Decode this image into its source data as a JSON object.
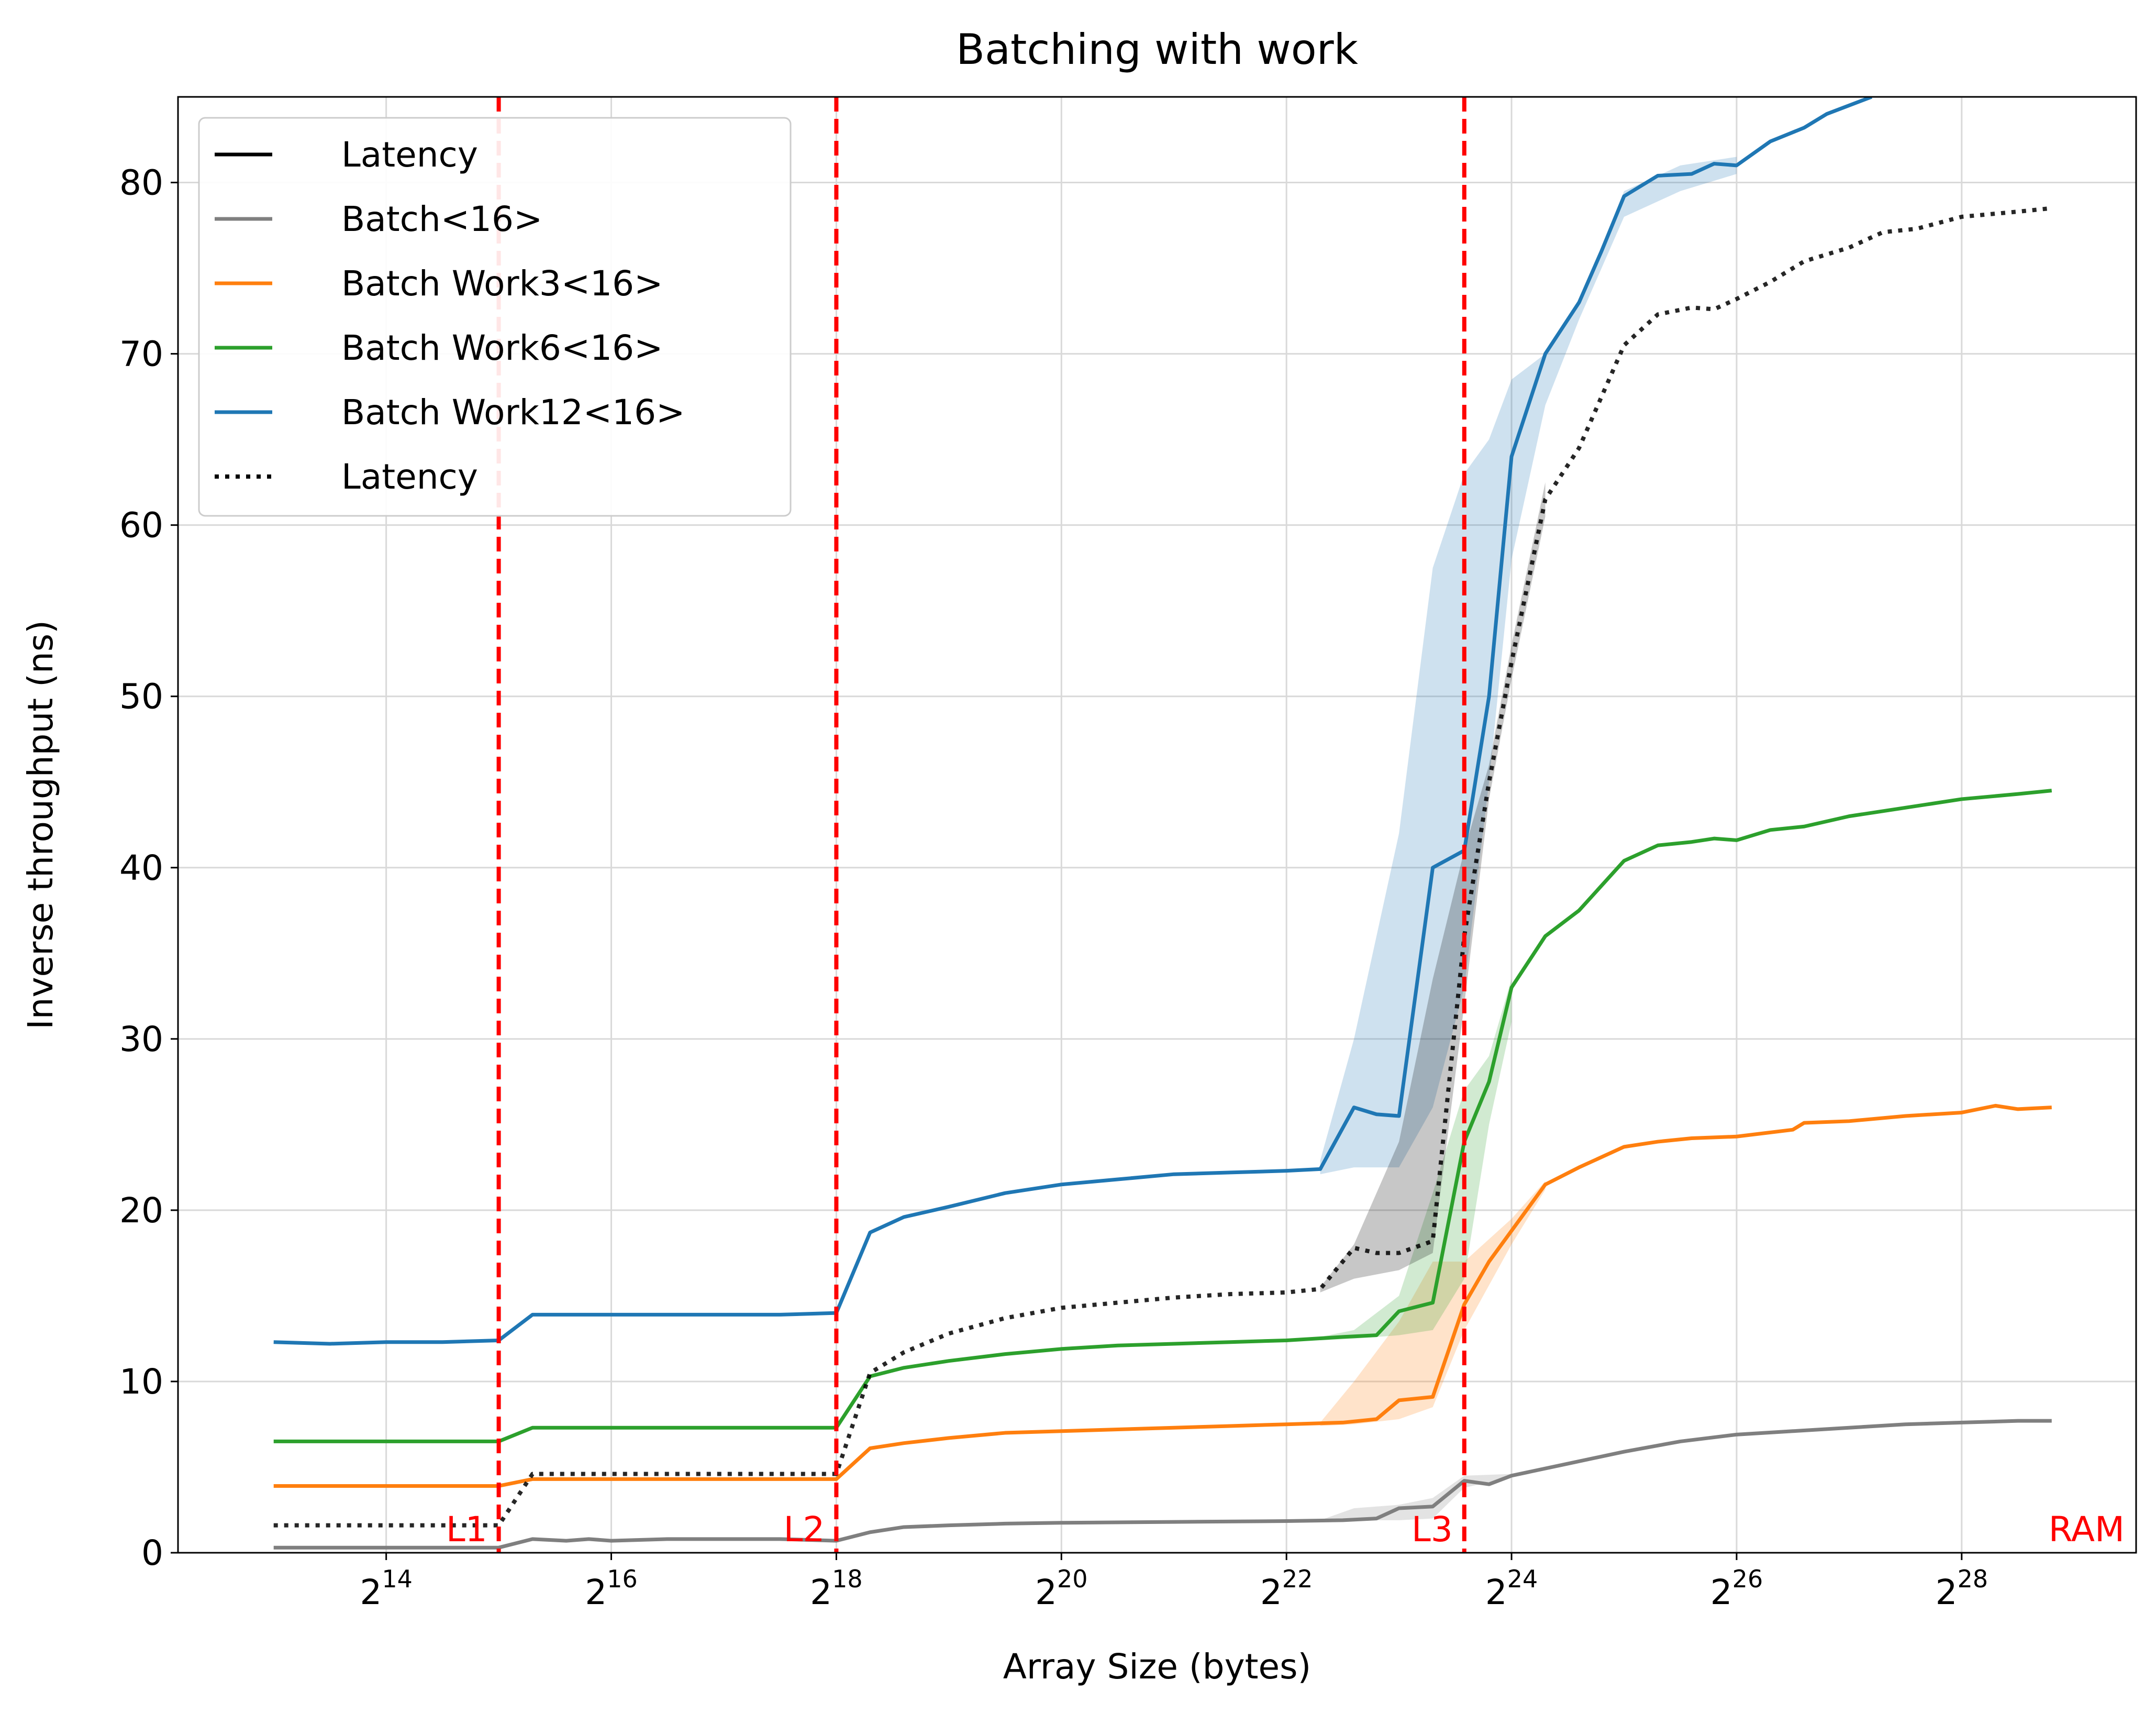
{
  "chart_data": {
    "type": "line",
    "title": "Batching with work",
    "xlabel": "Array Size (bytes)",
    "ylabel": "Inverse throughput (ns)",
    "x_scale": "log2",
    "xlim_log2": [
      12.15,
      29.55
    ],
    "ylim": [
      0,
      85
    ],
    "xticks": [
      {
        "exp": 14,
        "base": "2",
        "sup": "14"
      },
      {
        "exp": 16,
        "base": "2",
        "sup": "16"
      },
      {
        "exp": 18,
        "base": "2",
        "sup": "18"
      },
      {
        "exp": 20,
        "base": "2",
        "sup": "20"
      },
      {
        "exp": 22,
        "base": "2",
        "sup": "22"
      },
      {
        "exp": 24,
        "base": "2",
        "sup": "24"
      },
      {
        "exp": 26,
        "base": "2",
        "sup": "26"
      },
      {
        "exp": 28,
        "base": "2",
        "sup": "28"
      }
    ],
    "yticks": [
      0,
      10,
      20,
      30,
      40,
      50,
      60,
      70,
      80
    ],
    "grid": true,
    "legend_position": "upper-left",
    "cache_lines": [
      {
        "label": "L1",
        "x_log2": 15.0
      },
      {
        "label": "L2",
        "x_log2": 18.0
      },
      {
        "label": "L3",
        "x_log2": 23.58
      }
    ],
    "ram_label": "RAM",
    "colors": {
      "latency": "#000000",
      "batch16": "#7f7f7f",
      "work3": "#ff7f0e",
      "work6": "#2ca02c",
      "work12": "#1f77b4",
      "cache_line": "#ff0000"
    },
    "legend": [
      {
        "label": "Latency",
        "color": "#000000",
        "style": "solid"
      },
      {
        "label": "Batch<16>",
        "color": "#7f7f7f",
        "style": "solid"
      },
      {
        "label": "Batch Work3<16>",
        "color": "#ff7f0e",
        "style": "solid"
      },
      {
        "label": "Batch Work6<16>",
        "color": "#2ca02c",
        "style": "solid"
      },
      {
        "label": "Batch Work12<16>",
        "color": "#1f77b4",
        "style": "solid"
      },
      {
        "label": "Latency",
        "color": "#000000",
        "style": "dotted"
      }
    ],
    "series": [
      {
        "name": "Batch<16>",
        "color": "#7f7f7f",
        "style": "solid",
        "points": [
          [
            13,
            0.3
          ],
          [
            13.5,
            0.3
          ],
          [
            14,
            0.3
          ],
          [
            14.5,
            0.3
          ],
          [
            15,
            0.3
          ],
          [
            15.3,
            0.8
          ],
          [
            15.6,
            0.7
          ],
          [
            15.8,
            0.8
          ],
          [
            16,
            0.7
          ],
          [
            16.5,
            0.8
          ],
          [
            17,
            0.8
          ],
          [
            17.5,
            0.8
          ],
          [
            18,
            0.7
          ],
          [
            18.3,
            1.2
          ],
          [
            18.6,
            1.5
          ],
          [
            19,
            1.6
          ],
          [
            19.5,
            1.7
          ],
          [
            20,
            1.75
          ],
          [
            21,
            1.8
          ],
          [
            22,
            1.85
          ],
          [
            22.5,
            1.9
          ],
          [
            22.8,
            2.0
          ],
          [
            23,
            2.6
          ],
          [
            23.3,
            2.7
          ],
          [
            23.58,
            4.2
          ],
          [
            23.8,
            4.0
          ],
          [
            24,
            4.5
          ],
          [
            24.5,
            5.2
          ],
          [
            25,
            5.9
          ],
          [
            25.5,
            6.5
          ],
          [
            26,
            6.9
          ],
          [
            26.5,
            7.1
          ],
          [
            27,
            7.3
          ],
          [
            27.5,
            7.5
          ],
          [
            28,
            7.6
          ],
          [
            28.5,
            7.7
          ],
          [
            28.8,
            7.7
          ]
        ],
        "band_upper": [
          [
            22.3,
            1.9
          ],
          [
            22.6,
            2.6
          ],
          [
            23.0,
            2.8
          ],
          [
            23.3,
            3.2
          ],
          [
            23.58,
            4.5
          ],
          [
            24,
            4.6
          ]
        ],
        "band_lower": [
          [
            22.3,
            1.8
          ],
          [
            22.6,
            1.9
          ],
          [
            23.0,
            1.9
          ],
          [
            23.3,
            2.0
          ],
          [
            23.58,
            3.8
          ],
          [
            24,
            4.4
          ]
        ]
      },
      {
        "name": "Batch Work3<16>",
        "color": "#ff7f0e",
        "style": "solid",
        "points": [
          [
            13,
            3.9
          ],
          [
            13.5,
            3.9
          ],
          [
            14,
            3.9
          ],
          [
            14.5,
            3.9
          ],
          [
            15,
            3.9
          ],
          [
            15.3,
            4.3
          ],
          [
            16,
            4.3
          ],
          [
            16.5,
            4.3
          ],
          [
            17,
            4.3
          ],
          [
            17.5,
            4.3
          ],
          [
            18,
            4.3
          ],
          [
            18.3,
            6.1
          ],
          [
            18.6,
            6.4
          ],
          [
            19,
            6.7
          ],
          [
            19.5,
            7.0
          ],
          [
            20,
            7.1
          ],
          [
            20.5,
            7.2
          ],
          [
            21,
            7.3
          ],
          [
            21.5,
            7.4
          ],
          [
            22,
            7.5
          ],
          [
            22.5,
            7.6
          ],
          [
            22.8,
            7.8
          ],
          [
            23.0,
            8.9
          ],
          [
            23.3,
            9.1
          ],
          [
            23.58,
            14.5
          ],
          [
            23.8,
            17.0
          ],
          [
            24,
            18.8
          ],
          [
            24.3,
            21.5
          ],
          [
            24.6,
            22.5
          ],
          [
            25,
            23.7
          ],
          [
            25.3,
            24.0
          ],
          [
            25.6,
            24.2
          ],
          [
            26,
            24.3
          ],
          [
            26.5,
            24.7
          ],
          [
            26.6,
            25.1
          ],
          [
            27,
            25.2
          ],
          [
            27.5,
            25.5
          ],
          [
            28,
            25.7
          ],
          [
            28.3,
            26.1
          ],
          [
            28.5,
            25.9
          ],
          [
            28.8,
            26.0
          ]
        ],
        "band_upper": [
          [
            22.3,
            7.6
          ],
          [
            22.6,
            10.0
          ],
          [
            23.0,
            13.5
          ],
          [
            23.3,
            17.0
          ],
          [
            23.58,
            17.0
          ],
          [
            24,
            19.5
          ],
          [
            24.3,
            21.7
          ]
        ],
        "band_lower": [
          [
            22.3,
            7.4
          ],
          [
            22.6,
            7.5
          ],
          [
            23.0,
            7.8
          ],
          [
            23.3,
            8.5
          ],
          [
            23.58,
            13.0
          ],
          [
            24,
            18.0
          ],
          [
            24.3,
            21.2
          ]
        ]
      },
      {
        "name": "Batch Work6<16>",
        "color": "#2ca02c",
        "style": "solid",
        "points": [
          [
            13,
            6.5
          ],
          [
            13.5,
            6.5
          ],
          [
            14,
            6.5
          ],
          [
            14.5,
            6.5
          ],
          [
            15,
            6.5
          ],
          [
            15.3,
            7.3
          ],
          [
            16,
            7.3
          ],
          [
            16.5,
            7.3
          ],
          [
            17,
            7.3
          ],
          [
            17.5,
            7.3
          ],
          [
            18,
            7.3
          ],
          [
            18.3,
            10.3
          ],
          [
            18.6,
            10.8
          ],
          [
            19,
            11.2
          ],
          [
            19.5,
            11.6
          ],
          [
            20,
            11.9
          ],
          [
            20.5,
            12.1
          ],
          [
            21,
            12.2
          ],
          [
            21.5,
            12.3
          ],
          [
            22,
            12.4
          ],
          [
            22.5,
            12.6
          ],
          [
            22.8,
            12.7
          ],
          [
            23,
            14.1
          ],
          [
            23.3,
            14.6
          ],
          [
            23.58,
            24.0
          ],
          [
            23.8,
            27.5
          ],
          [
            24,
            33.0
          ],
          [
            24.3,
            36.0
          ],
          [
            24.6,
            37.5
          ],
          [
            25,
            40.4
          ],
          [
            25.3,
            41.3
          ],
          [
            25.6,
            41.5
          ],
          [
            25.8,
            41.7
          ],
          [
            26,
            41.6
          ],
          [
            26.3,
            42.2
          ],
          [
            26.6,
            42.4
          ],
          [
            27,
            43.0
          ],
          [
            27.5,
            43.5
          ],
          [
            28,
            44.0
          ],
          [
            28.5,
            44.3
          ],
          [
            28.8,
            44.5
          ]
        ],
        "band_upper": [
          [
            22.3,
            12.6
          ],
          [
            22.6,
            13.0
          ],
          [
            23.0,
            15.0
          ],
          [
            23.3,
            21.0
          ],
          [
            23.58,
            27.0
          ],
          [
            23.8,
            29.0
          ],
          [
            24,
            33.5
          ]
        ],
        "band_lower": [
          [
            22.3,
            12.4
          ],
          [
            22.6,
            12.5
          ],
          [
            23.0,
            12.7
          ],
          [
            23.3,
            13.0
          ],
          [
            23.58,
            16.0
          ],
          [
            23.8,
            25.0
          ],
          [
            24,
            31.0
          ]
        ]
      },
      {
        "name": "Batch Work12<16>",
        "color": "#1f77b4",
        "style": "solid",
        "points": [
          [
            13,
            12.3
          ],
          [
            13.5,
            12.2
          ],
          [
            14,
            12.3
          ],
          [
            14.5,
            12.3
          ],
          [
            15,
            12.4
          ],
          [
            15.3,
            13.9
          ],
          [
            16,
            13.9
          ],
          [
            16.5,
            13.9
          ],
          [
            17,
            13.9
          ],
          [
            17.5,
            13.9
          ],
          [
            18,
            14.0
          ],
          [
            18.3,
            18.7
          ],
          [
            18.6,
            19.6
          ],
          [
            19,
            20.2
          ],
          [
            19.5,
            21.0
          ],
          [
            20,
            21.5
          ],
          [
            20.5,
            21.8
          ],
          [
            21,
            22.1
          ],
          [
            21.5,
            22.2
          ],
          [
            22,
            22.3
          ],
          [
            22.3,
            22.4
          ],
          [
            22.6,
            26.0
          ],
          [
            22.8,
            25.6
          ],
          [
            23,
            25.5
          ],
          [
            23.3,
            40.0
          ],
          [
            23.58,
            41.0
          ],
          [
            23.8,
            50.0
          ],
          [
            24,
            64.0
          ],
          [
            24.3,
            70.0
          ],
          [
            24.6,
            73.0
          ],
          [
            24.8,
            76.0
          ],
          [
            25,
            79.2
          ],
          [
            25.3,
            80.4
          ],
          [
            25.6,
            80.5
          ],
          [
            25.8,
            81.1
          ],
          [
            26,
            81.0
          ],
          [
            26.3,
            82.4
          ],
          [
            26.6,
            83.2
          ],
          [
            26.8,
            84.0
          ],
          [
            27.2,
            85.0
          ]
        ],
        "band_upper": [
          [
            22.3,
            22.9
          ],
          [
            22.6,
            30.0
          ],
          [
            23.0,
            42.0
          ],
          [
            23.3,
            57.5
          ],
          [
            23.58,
            63.0
          ],
          [
            23.8,
            65.0
          ],
          [
            24,
            68.5
          ],
          [
            24.3,
            70.0
          ],
          [
            24.6,
            73.0
          ],
          [
            25,
            79.5
          ],
          [
            25.5,
            81.0
          ],
          [
            26,
            81.5
          ]
        ],
        "band_lower": [
          [
            22.3,
            22.1
          ],
          [
            22.6,
            22.5
          ],
          [
            23.0,
            22.5
          ],
          [
            23.3,
            26.0
          ],
          [
            23.58,
            33.0
          ],
          [
            23.8,
            45.0
          ],
          [
            24,
            58.0
          ],
          [
            24.3,
            67.0
          ],
          [
            24.6,
            72.0
          ],
          [
            25,
            78.0
          ],
          [
            25.5,
            79.5
          ],
          [
            26,
            80.5
          ]
        ]
      },
      {
        "name": "Latency",
        "color": "#000000",
        "style": "dotted",
        "points": [
          [
            13,
            1.6
          ],
          [
            13.5,
            1.6
          ],
          [
            14,
            1.6
          ],
          [
            14.5,
            1.6
          ],
          [
            15,
            1.6
          ],
          [
            15.3,
            4.6
          ],
          [
            16,
            4.6
          ],
          [
            16.5,
            4.6
          ],
          [
            17,
            4.6
          ],
          [
            17.5,
            4.6
          ],
          [
            18,
            4.6
          ],
          [
            18.3,
            10.5
          ],
          [
            18.6,
            11.7
          ],
          [
            19,
            12.8
          ],
          [
            19.5,
            13.7
          ],
          [
            20,
            14.3
          ],
          [
            20.5,
            14.6
          ],
          [
            21,
            14.9
          ],
          [
            21.5,
            15.1
          ],
          [
            22,
            15.2
          ],
          [
            22.3,
            15.4
          ],
          [
            22.6,
            17.8
          ],
          [
            22.8,
            17.5
          ],
          [
            23,
            17.5
          ],
          [
            23.3,
            18.2
          ],
          [
            23.58,
            36.0
          ],
          [
            23.8,
            45.0
          ],
          [
            24,
            52.0
          ],
          [
            24.3,
            61.5
          ],
          [
            24.6,
            64.5
          ],
          [
            25,
            70.5
          ],
          [
            25.3,
            72.3
          ],
          [
            25.6,
            72.7
          ],
          [
            25.8,
            72.6
          ],
          [
            26,
            73.2
          ],
          [
            26.3,
            74.2
          ],
          [
            26.6,
            75.4
          ],
          [
            27,
            76.2
          ],
          [
            27.3,
            77.1
          ],
          [
            27.6,
            77.3
          ],
          [
            28,
            78.0
          ],
          [
            28.5,
            78.3
          ],
          [
            28.8,
            78.5
          ]
        ],
        "band_upper": [
          [
            22.3,
            15.5
          ],
          [
            22.6,
            18.0
          ],
          [
            23.0,
            24.0
          ],
          [
            23.3,
            33.5
          ],
          [
            23.58,
            41.0
          ],
          [
            23.8,
            46.0
          ],
          [
            24,
            53.0
          ],
          [
            24.3,
            62.5
          ]
        ],
        "band_lower": [
          [
            22.3,
            15.2
          ],
          [
            22.6,
            16.0
          ],
          [
            23.0,
            16.5
          ],
          [
            23.3,
            17.5
          ],
          [
            23.58,
            32.0
          ],
          [
            23.8,
            44.0
          ],
          [
            24,
            51.0
          ],
          [
            24.3,
            60.5
          ]
        ]
      }
    ]
  }
}
